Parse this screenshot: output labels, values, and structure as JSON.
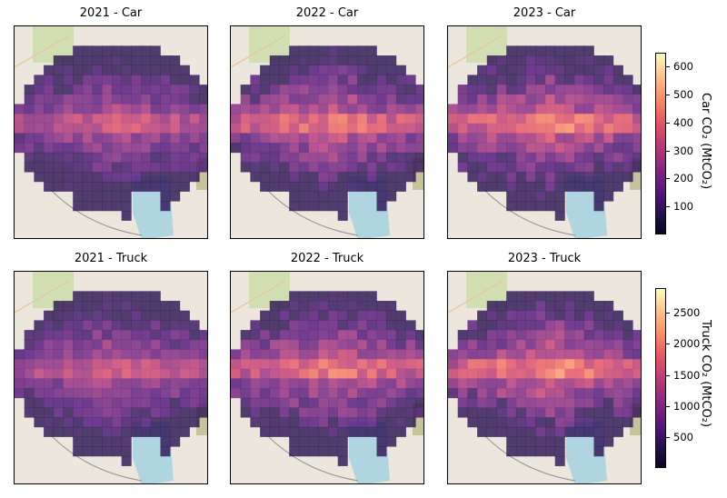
{
  "chart_data": [
    {
      "type": "heatmap",
      "title": "2021 - Car",
      "year": "2021",
      "vehicle": "Car",
      "scale": "car"
    },
    {
      "type": "heatmap",
      "title": "2022 - Car",
      "year": "2022",
      "vehicle": "Car",
      "scale": "car"
    },
    {
      "type": "heatmap",
      "title": "2023 - Car",
      "year": "2023",
      "vehicle": "Car",
      "scale": "car"
    },
    {
      "type": "heatmap",
      "title": "2021 - Truck",
      "year": "2021",
      "vehicle": "Truck",
      "scale": "truck"
    },
    {
      "type": "heatmap",
      "title": "2022 - Truck",
      "year": "2022",
      "vehicle": "Truck",
      "scale": "truck"
    },
    {
      "type": "heatmap",
      "title": "2023 - Truck",
      "year": "2023",
      "vehicle": "Truck",
      "scale": "truck"
    }
  ],
  "colorbars": {
    "car": {
      "label": "Car CO₂ (MtCO₂)",
      "ticks": [
        100,
        200,
        300,
        400,
        500,
        600
      ],
      "range": [
        0,
        650
      ],
      "colormap": "magma"
    },
    "truck": {
      "label": "Truck CO₂ (MtCO₂)",
      "ticks": [
        500,
        1000,
        1500,
        2000,
        2500
      ],
      "range": [
        0,
        2900
      ],
      "colormap": "magma"
    }
  },
  "basemap_colors": {
    "land": "#ece6dc",
    "water": "#aed5e0",
    "green": "#c9dca6"
  }
}
